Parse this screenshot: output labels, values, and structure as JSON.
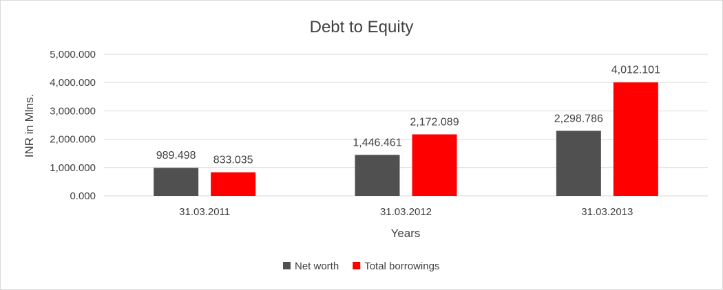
{
  "chart_data": {
    "type": "bar",
    "title": "Debt to Equity",
    "xlabel": "Years",
    "ylabel": "INR in Mlns.",
    "categories": [
      "31.03.2011",
      "31.03.2012",
      "31.03.2013"
    ],
    "series": [
      {
        "name": "Net worth",
        "color": "#505050",
        "values": [
          989.498,
          1446.461,
          2298.786
        ],
        "labels": [
          "989.498",
          "1,446.461",
          "2,298.786"
        ]
      },
      {
        "name": "Total borrowings",
        "color": "#ff0000",
        "values": [
          833.035,
          2172.089,
          4012.101
        ],
        "labels": [
          "833.035",
          "2,172.089",
          "4,012.101"
        ]
      }
    ],
    "ylim": [
      0,
      5000
    ],
    "yticks": [
      0,
      1000,
      2000,
      3000,
      4000,
      5000
    ],
    "ytick_labels": [
      "0.000",
      "1,000.000",
      "2,000.000",
      "3,000.000",
      "4,000.000",
      "5,000.000"
    ],
    "grid": true,
    "legend_position": "bottom"
  }
}
